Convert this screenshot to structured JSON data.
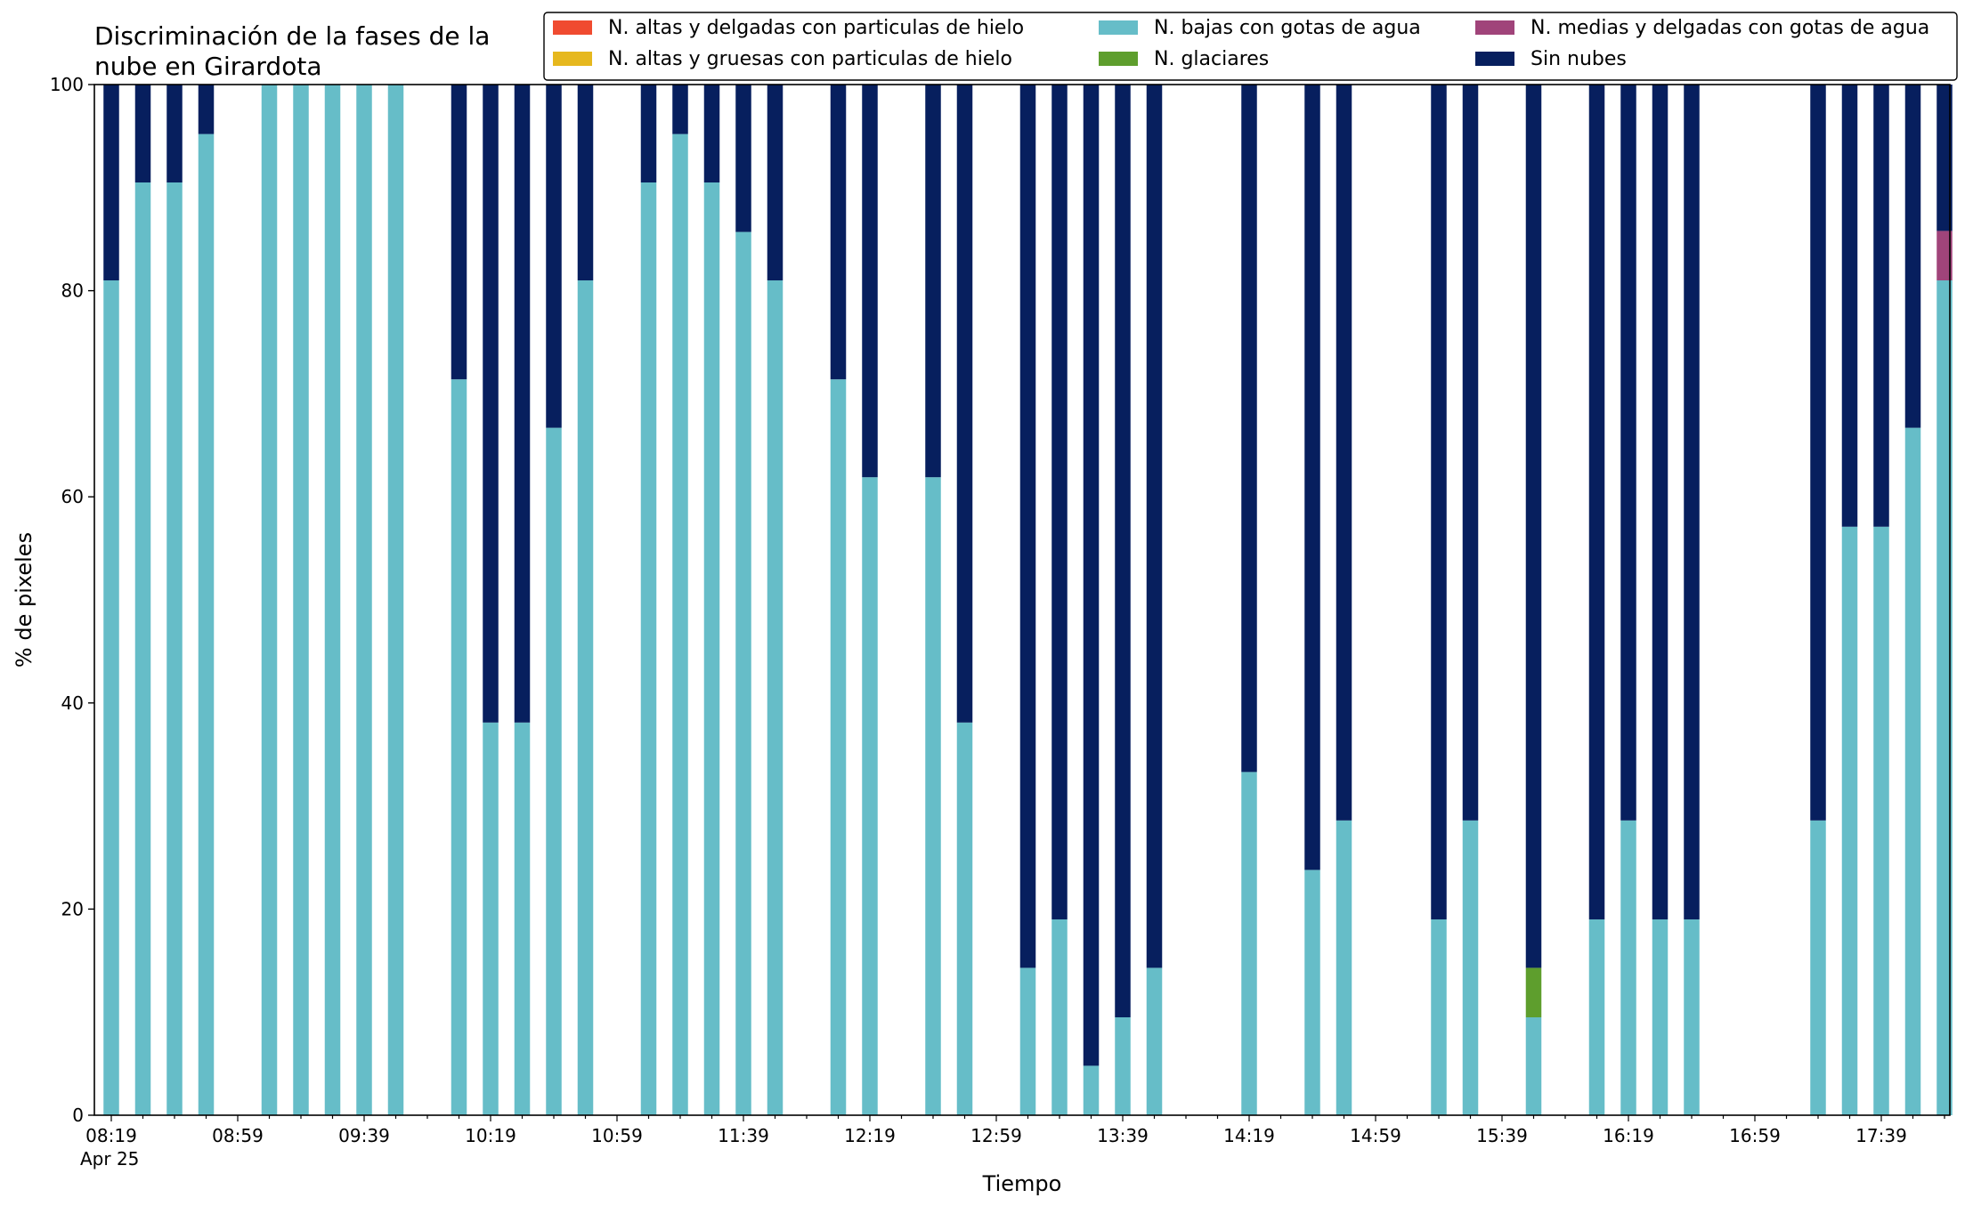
{
  "chart_data": {
    "type": "bar",
    "stacked": true,
    "title": "Discriminación de la fases de la\nnube en Girardota",
    "xlabel": "Tiempo",
    "ylabel": "% de pixeles",
    "ylim": [
      0,
      100
    ],
    "yticks": [
      0,
      20,
      40,
      60,
      80,
      100
    ],
    "x_start": "08:19",
    "x_start_date": "Apr 25",
    "x_step_minutes": 10,
    "x_tick_labels": [
      "08:19",
      "08:59",
      "09:39",
      "10:19",
      "10:59",
      "11:39",
      "12:19",
      "12:59",
      "13:39",
      "14:19",
      "14:59",
      "15:39",
      "16:19",
      "16:59",
      "17:39"
    ],
    "grid": false,
    "legend_position": "top-right",
    "series": [
      {
        "name": "N. altas y delgadas con particulas de hielo",
        "color": "#f04b30",
        "values": [
          0,
          0,
          0,
          0,
          0,
          0,
          0,
          0,
          0,
          0,
          0,
          0,
          0,
          0,
          0,
          0,
          0,
          0,
          0,
          0,
          0,
          0,
          0,
          0,
          0,
          0,
          0,
          0,
          0,
          0,
          0,
          0,
          0,
          0,
          0,
          0,
          0,
          0,
          0,
          0,
          0,
          0,
          0,
          0,
          0,
          0,
          0,
          0,
          0,
          0,
          0,
          0,
          0,
          0,
          0,
          0,
          0,
          0,
          0,
          0
        ]
      },
      {
        "name": "N. altas y gruesas con particulas de hielo",
        "color": "#e6b81e",
        "values": [
          0,
          0,
          0,
          0,
          0,
          0,
          0,
          0,
          0,
          0,
          0,
          0,
          0,
          0,
          0,
          0,
          0,
          0,
          0,
          0,
          0,
          0,
          0,
          0,
          0,
          0,
          0,
          0,
          0,
          0,
          0,
          0,
          0,
          0,
          0,
          0,
          0,
          0,
          0,
          0,
          0,
          0,
          0,
          0,
          0,
          0,
          0,
          0,
          0,
          0,
          0,
          0,
          0,
          0,
          0,
          0,
          0,
          0,
          0,
          0
        ]
      },
      {
        "name": "N. bajas con gotas de agua",
        "color": "#66bdc8",
        "values": [
          81,
          90.5,
          90.5,
          95.2,
          0,
          100,
          100,
          100,
          100,
          100,
          0,
          71.4,
          38.1,
          38.1,
          66.7,
          81,
          0,
          90.5,
          95.2,
          90.5,
          85.7,
          81,
          0,
          71.4,
          61.9,
          0,
          61.9,
          38.1,
          0,
          14.3,
          19,
          4.8,
          9.5,
          14.3,
          0,
          0,
          33.3,
          0,
          23.8,
          28.6,
          0,
          0,
          19,
          28.6,
          0,
          9.5,
          0,
          19,
          28.6,
          19,
          19,
          0,
          0,
          0,
          28.6,
          57.1,
          57.1,
          66.7,
          81
        ]
      },
      {
        "name": "N. glaciares",
        "color": "#5e9e2d",
        "values": [
          0,
          0,
          0,
          0,
          0,
          0,
          0,
          0,
          0,
          0,
          0,
          0,
          0,
          0,
          0,
          0,
          0,
          0,
          0,
          0,
          0,
          0,
          0,
          0,
          0,
          0,
          0,
          0,
          0,
          0,
          0,
          0,
          0,
          0,
          0,
          0,
          0,
          0,
          0,
          0,
          0,
          0,
          0,
          0,
          0,
          4.8,
          0,
          0,
          0,
          0,
          0,
          0,
          0,
          0,
          0,
          0,
          0,
          0,
          0
        ]
      },
      {
        "name": "N. medias y delgadas con gotas de agua",
        "color": "#a0447a",
        "values": [
          0,
          0,
          0,
          0,
          0,
          0,
          0,
          0,
          0,
          0,
          0,
          0,
          0,
          0,
          0,
          0,
          0,
          0,
          0,
          0,
          0,
          0,
          0,
          0,
          0,
          0,
          0,
          0,
          0,
          0,
          0,
          0,
          0,
          0,
          0,
          0,
          0,
          0,
          0,
          0,
          0,
          0,
          0,
          0,
          0,
          0,
          0,
          0,
          0,
          0,
          0,
          0,
          0,
          0,
          0,
          0,
          0,
          0,
          4.8
        ]
      },
      {
        "name": "Sin nubes",
        "color": "#071f5e",
        "values": [
          19,
          9.5,
          9.5,
          4.8,
          0,
          0,
          0,
          0,
          0,
          0,
          0,
          28.6,
          61.9,
          61.9,
          33.3,
          19,
          0,
          9.5,
          4.8,
          9.5,
          14.3,
          19,
          0,
          28.6,
          38.1,
          0,
          38.1,
          61.9,
          0,
          85.7,
          81,
          95.2,
          90.5,
          85.7,
          0,
          0,
          66.7,
          0,
          76.2,
          71.4,
          0,
          0,
          81,
          71.4,
          0,
          85.7,
          0,
          81,
          71.4,
          81,
          81,
          0,
          0,
          0,
          71.4,
          42.9,
          42.9,
          33.3,
          14.2
        ]
      }
    ]
  }
}
